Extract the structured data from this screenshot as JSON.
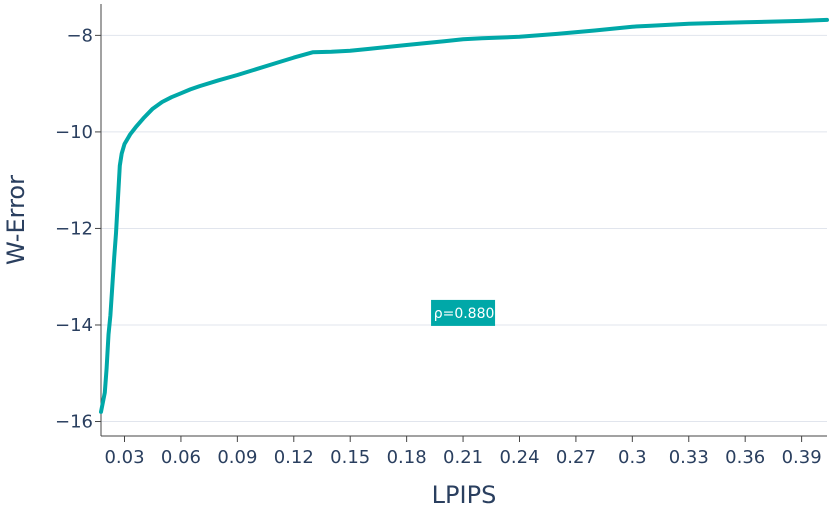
{
  "chart_data": {
    "type": "line",
    "xlabel": "LPIPS",
    "ylabel": "W-Error",
    "xlim": [
      0.0175,
      0.4035
    ],
    "ylim": [
      -16.3,
      -7.35
    ],
    "x_ticks": [
      0.03,
      0.06,
      0.09,
      0.12,
      0.15,
      0.18,
      0.21,
      0.24,
      0.27,
      0.3,
      0.33,
      0.36,
      0.39
    ],
    "x_tick_labels": [
      "0.03",
      "0.06",
      "0.09",
      "0.12",
      "0.15",
      "0.18",
      "0.21",
      "0.24",
      "0.27",
      "0.3",
      "0.33",
      "0.36",
      "0.39"
    ],
    "y_ticks": [
      -16,
      -14,
      -12,
      -10,
      -8
    ],
    "y_tick_labels": [
      "−16",
      "−14",
      "−12",
      "−10",
      "−8"
    ],
    "grid": {
      "x": false,
      "y": true
    },
    "series": [
      {
        "color": "#00a8a8",
        "x": [
          0.0175,
          0.0185,
          0.0195,
          0.0205,
          0.0215,
          0.0225,
          0.0235,
          0.0245,
          0.0255,
          0.0265,
          0.0275,
          0.0285,
          0.03,
          0.033,
          0.036,
          0.04,
          0.045,
          0.05,
          0.055,
          0.06,
          0.065,
          0.07,
          0.08,
          0.09,
          0.1,
          0.11,
          0.12,
          0.13,
          0.14,
          0.15,
          0.16,
          0.18,
          0.2,
          0.21,
          0.22,
          0.24,
          0.26,
          0.28,
          0.3,
          0.31,
          0.33,
          0.36,
          0.39,
          0.4035
        ],
        "y": [
          -15.8,
          -15.6,
          -15.4,
          -14.9,
          -14.2,
          -13.8,
          -13.2,
          -12.6,
          -12.1,
          -11.4,
          -10.7,
          -10.45,
          -10.25,
          -10.05,
          -9.9,
          -9.72,
          -9.52,
          -9.38,
          -9.28,
          -9.2,
          -9.12,
          -9.05,
          -8.93,
          -8.82,
          -8.7,
          -8.58,
          -8.46,
          -8.35,
          -8.34,
          -8.32,
          -8.28,
          -8.2,
          -8.12,
          -8.08,
          -8.06,
          -8.03,
          -7.97,
          -7.9,
          -7.82,
          -7.8,
          -7.76,
          -7.73,
          -7.7,
          -7.68
        ]
      }
    ],
    "annotation": {
      "text": "ρ=0.880",
      "x": 0.21,
      "y": -13.75,
      "bgcolor": "#00a8a8"
    }
  }
}
